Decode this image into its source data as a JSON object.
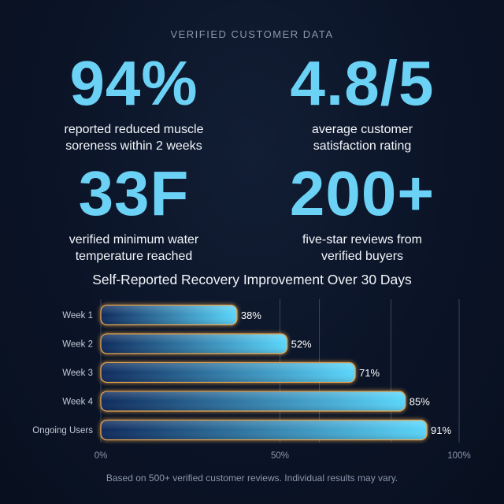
{
  "header": {
    "eyebrow": "VERIFIED CUSTOMER DATA"
  },
  "stats": [
    {
      "value": "94%",
      "desc_line1": "reported reduced muscle",
      "desc_line2": "soreness within 2 weeks"
    },
    {
      "value": "4.8/5",
      "desc_line1": "average customer",
      "desc_line2": "satisfaction rating"
    },
    {
      "value": "33F",
      "desc_line1": "verified minimum water",
      "desc_line2": "temperature reached"
    },
    {
      "value": "200+",
      "desc_line1": "five-star reviews from",
      "desc_line2": "verified buyers"
    }
  ],
  "chart_data": {
    "type": "bar",
    "orientation": "horizontal",
    "title": "Self-Reported Recovery Improvement Over 30 Days",
    "categories": [
      "Week 1",
      "Week 2",
      "Week 3",
      "Week 4",
      "Ongoing Users"
    ],
    "values": [
      38,
      52,
      71,
      85,
      91
    ],
    "value_labels": [
      "38%",
      "52%",
      "71%",
      "85%",
      "91%"
    ],
    "xlim": [
      0,
      100
    ],
    "x_ticks": [
      0,
      50,
      100
    ],
    "x_tick_labels": [
      "0%",
      "50%",
      "100%"
    ],
    "grid": true,
    "colors": {
      "bar_start": "#0e2a5c",
      "bar_end": "#5ad6fb",
      "bar_glow": "#e8a650",
      "grid": "#3a465c"
    }
  },
  "footer": {
    "note": "Based on 500+ verified customer reviews. Individual results may vary."
  }
}
